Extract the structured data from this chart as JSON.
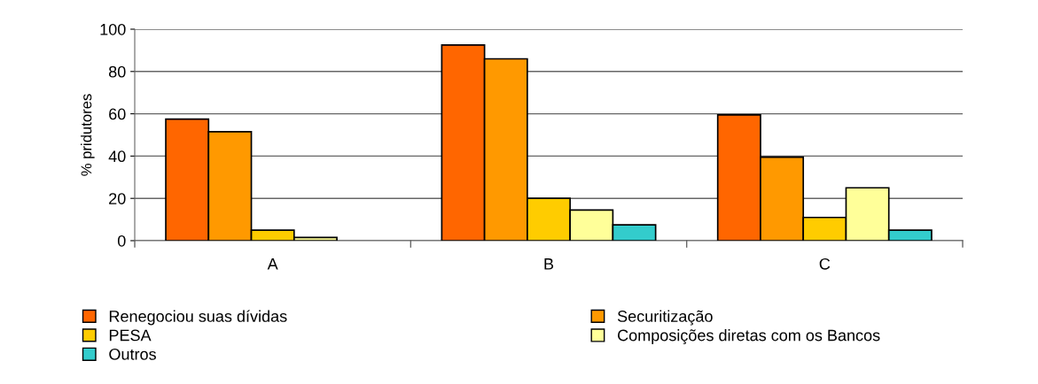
{
  "chart_data": {
    "type": "bar",
    "ylabel": "% pridutores",
    "categories": [
      "A",
      "B",
      "C"
    ],
    "series": [
      {
        "name": "Renegociou suas dívidas",
        "color": "#ff6600",
        "values": [
          57.5,
          92.5,
          59.5
        ]
      },
      {
        "name": "Securitização",
        "color": "#ff9900",
        "values": [
          51.5,
          86,
          39.5
        ]
      },
      {
        "name": "PESA",
        "color": "#ffcc00",
        "values": [
          5,
          20,
          11
        ]
      },
      {
        "name": "Composições diretas com os Bancos",
        "color": "#ffff99",
        "values": [
          1.5,
          14.5,
          25
        ]
      },
      {
        "name": "Outros",
        "color": "#33cccc",
        "values": [
          null,
          7.5,
          5
        ]
      }
    ],
    "ylim": [
      0,
      100
    ],
    "yticks": [
      0,
      20,
      40,
      60,
      80,
      100
    ],
    "grid": "y",
    "legend": "bottom"
  }
}
